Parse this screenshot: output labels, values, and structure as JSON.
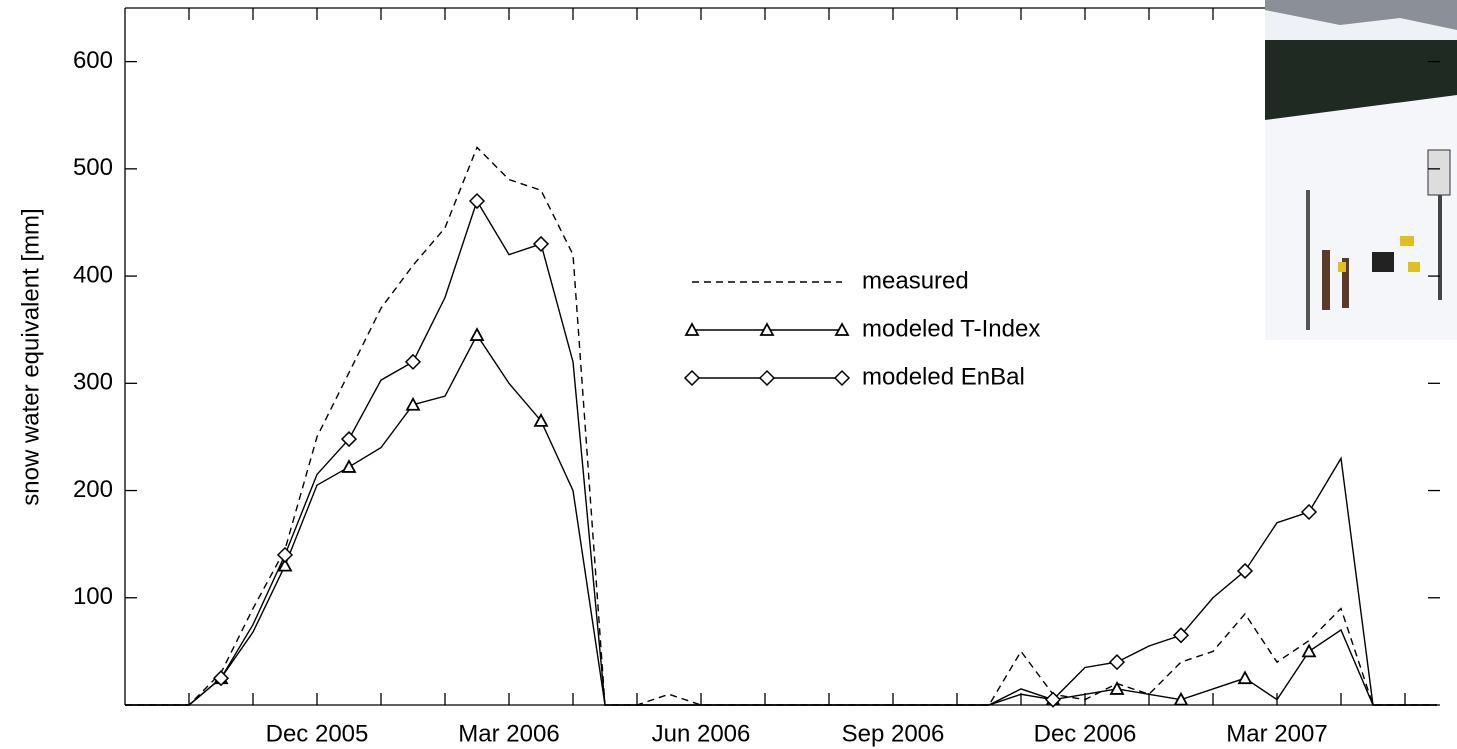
{
  "chart_data": {
    "type": "line",
    "y_label": "snow water equivalent [mm]",
    "categories": [
      null,
      null,
      null,
      null,
      null,
      null,
      "Dec 2005",
      null,
      null,
      null,
      null,
      null,
      "Mar 2006",
      null,
      null,
      null,
      null,
      null,
      "Jun 2006",
      null,
      null,
      null,
      null,
      null,
      "Sep 2006",
      null,
      null,
      null,
      null,
      null,
      "Dec 2006",
      null,
      null,
      null,
      null,
      null,
      "Mar 2007",
      null,
      null,
      null,
      null,
      null
    ],
    "ylim": [
      0,
      650
    ],
    "yticks": [
      100,
      200,
      300,
      400,
      500,
      600
    ],
    "series": [
      {
        "name": "measured",
        "color": "#000000",
        "line_style": "dashed",
        "marker": null,
        "values": [
          0,
          0,
          0,
          30,
          90,
          145,
          250,
          310,
          370,
          410,
          445,
          520,
          490,
          480,
          420,
          0,
          0,
          10,
          0,
          0,
          0,
          0,
          0,
          0,
          0,
          0,
          0,
          0,
          50,
          10,
          5,
          20,
          10,
          40,
          50,
          85,
          40,
          60,
          90,
          0,
          0,
          0
        ]
      },
      {
        "name": "modeled T-Index",
        "color": "#000000",
        "line_style": "solid",
        "marker": "triangle",
        "values": [
          0,
          0,
          0,
          25,
          68,
          130,
          205,
          222,
          240,
          280,
          288,
          345,
          300,
          265,
          200,
          0,
          0,
          0,
          0,
          0,
          0,
          0,
          0,
          0,
          0,
          0,
          0,
          0,
          10,
          5,
          10,
          15,
          10,
          5,
          15,
          25,
          5,
          50,
          70,
          0,
          0,
          0
        ]
      },
      {
        "name": "modeled EnBal",
        "color": "#000000",
        "line_style": "solid",
        "marker": "diamond",
        "values": [
          0,
          0,
          0,
          25,
          75,
          140,
          215,
          248,
          303,
          320,
          380,
          470,
          420,
          430,
          320,
          0,
          0,
          0,
          0,
          0,
          0,
          0,
          0,
          0,
          0,
          0,
          0,
          0,
          15,
          5,
          35,
          40,
          55,
          65,
          100,
          125,
          170,
          180,
          230,
          0,
          0,
          0
        ]
      }
    ]
  }
}
